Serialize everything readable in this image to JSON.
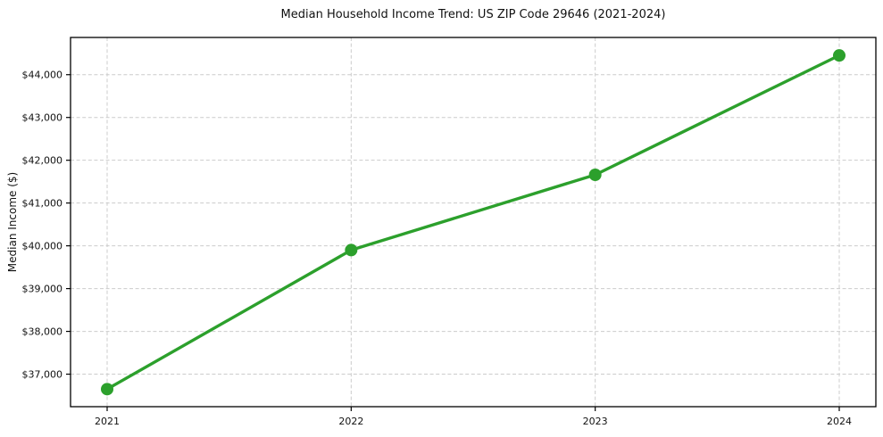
{
  "chart_data": {
    "type": "line",
    "title": "Median Household Income Trend: US ZIP Code 29646 (2021-2024)",
    "xlabel": "",
    "ylabel": "Median Income ($)",
    "x": [
      2021,
      2022,
      2023,
      2024
    ],
    "x_tick_labels": [
      "2021",
      "2022",
      "2023",
      "2024"
    ],
    "series": [
      {
        "name": "Median Household Income",
        "values": [
          36650,
          39900,
          41660,
          44450
        ]
      }
    ],
    "y_ticks": [
      37000,
      38000,
      39000,
      40000,
      41000,
      42000,
      43000,
      44000
    ],
    "y_tick_labels": [
      "$37,000",
      "$38,000",
      "$39,000",
      "$40,000",
      "$41,000",
      "$42,000",
      "$43,000",
      "$44,000"
    ],
    "xlim": [
      2020.85,
      2024.15
    ],
    "ylim": [
      36240,
      44870
    ],
    "grid": true,
    "grid_style": "dashed",
    "legend_position": "none",
    "line_color": "#2ca02c",
    "marker": "circle",
    "marker_radius": 7,
    "line_width": 3.4,
    "grid_color": "#cccccc",
    "spine_color": "#000000",
    "background_color": "#ffffff"
  }
}
